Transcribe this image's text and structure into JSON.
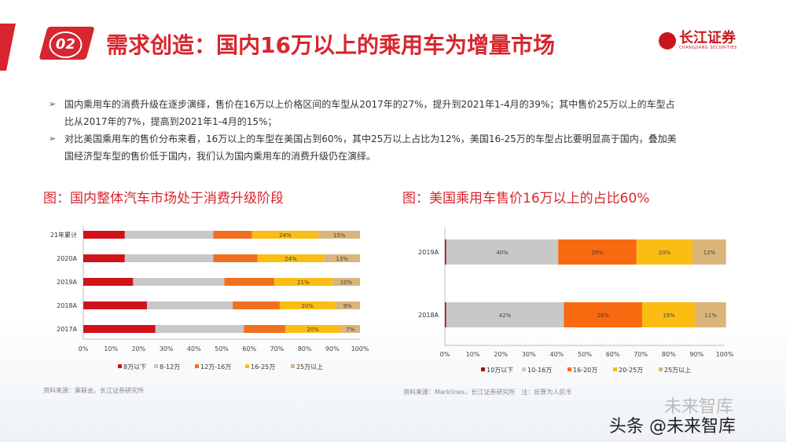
{
  "header": {
    "number": "02",
    "title": "需求创造：国内16万以上的乘用车为增量市场",
    "logo_cn": "长江证券",
    "logo_en": "CHANGJIANG SECURITIES"
  },
  "bullets": [
    "国内乘用车的消费升级在逐步演绎，售价在16万以上价格区间的车型从2017年的27%，提升到2021年1-4月的39%；其中售价25万以上的车型占比从2017年的7%，提高到2021年1-4月的15%；",
    "对比美国乘用车的售价分布来看，16万以上的车型在美国占到60%，其中25万以上占比为12%，美国16-25万的车型占比要明显高于国内，叠加美国经济型车型的售价低于国内，我们认为国内乘用车的消费升级仍在演绎。"
  ],
  "watermark": "头条 @未来智库",
  "watermark_faint": "未来智库",
  "chart_data": [
    {
      "type": "bar",
      "stacked": true,
      "orientation": "horizontal",
      "title": "图：国内整体汽车市场处于消费升级阶段",
      "categories": [
        "21年累计",
        "2020A",
        "2019A",
        "2018A",
        "2017A"
      ],
      "series": [
        {
          "name": "8万以下",
          "color": "#d0121b",
          "values": [
            15,
            15,
            18,
            23,
            26
          ],
          "labels": [
            "",
            "",
            "",
            "",
            ""
          ]
        },
        {
          "name": "8-12万",
          "color": "#c8c8c8",
          "values": [
            32,
            32,
            33,
            31,
            32
          ],
          "labels": [
            "",
            "",
            "",
            "",
            ""
          ]
        },
        {
          "name": "12万-16万",
          "color": "#f07020",
          "values": [
            14,
            16,
            18,
            17,
            15
          ],
          "labels": [
            "",
            "",
            "",
            "",
            ""
          ]
        },
        {
          "name": "16-25万",
          "color": "#fbbd14",
          "values": [
            24,
            24,
            21,
            20,
            20
          ],
          "labels": [
            "24%",
            "24%",
            "21%",
            "20%",
            "20%"
          ]
        },
        {
          "name": "25万以上",
          "color": "#d9b57a",
          "values": [
            15,
            13,
            10,
            9,
            7
          ],
          "labels": [
            "15%",
            "13%",
            "10%",
            "9%",
            "7%"
          ]
        }
      ],
      "xticks": [
        "0%",
        "10%",
        "20%",
        "30%",
        "40%",
        "50%",
        "60%",
        "70%",
        "80%",
        "90%",
        "100%"
      ],
      "xlim": [
        0,
        100
      ],
      "source": "资料来源：乘联会，长江证券研究所"
    },
    {
      "type": "bar",
      "stacked": true,
      "orientation": "horizontal",
      "title": "图：美国乘用车售价16万以上的占比60%",
      "categories": [
        "2019A",
        "2018A"
      ],
      "series": [
        {
          "name": "10万以下",
          "color": "#a0161c",
          "values": [
            0.5,
            0.5
          ],
          "labels": [
            "",
            ""
          ]
        },
        {
          "name": "10-16万",
          "color": "#c8c8c8",
          "values": [
            40,
            42
          ],
          "labels": [
            "40%",
            "42%"
          ]
        },
        {
          "name": "16-20万",
          "color": "#f86a10",
          "values": [
            28,
            28
          ],
          "labels": [
            "28%",
            "28%"
          ]
        },
        {
          "name": "20-25万",
          "color": "#fbbd14",
          "values": [
            20,
            19
          ],
          "labels": [
            "20%",
            "19%"
          ]
        },
        {
          "name": "25万以上",
          "color": "#d9b57a",
          "values": [
            12,
            11
          ],
          "labels": [
            "12%",
            "11%"
          ]
        }
      ],
      "xticks": [
        "0%",
        "10%",
        "20%",
        "30%",
        "40%",
        "50%",
        "60%",
        "70%",
        "80%",
        "90%",
        "100%"
      ],
      "xlim": [
        0,
        100
      ],
      "source": "资料来源：Marklines，长江证券研究所　注：折算为人民币"
    }
  ]
}
